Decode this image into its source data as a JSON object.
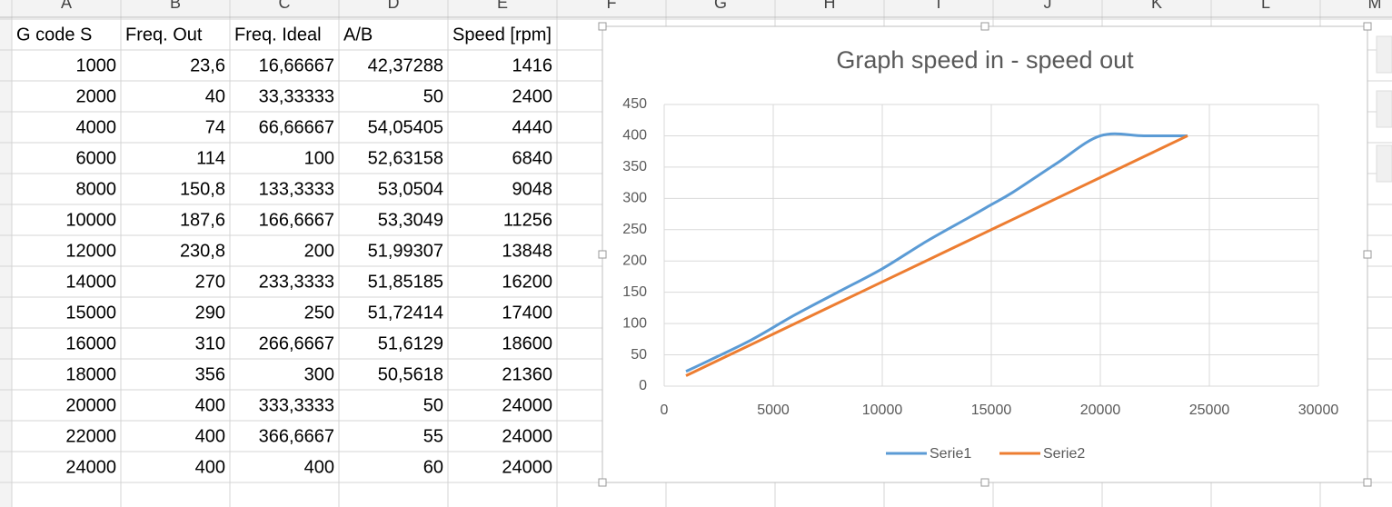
{
  "table": {
    "columns": [
      "A",
      "B",
      "C",
      "D",
      "E",
      "F",
      "G",
      "H",
      "I",
      "J",
      "K",
      "L",
      "M"
    ],
    "header": [
      "G code S",
      "Freq. Out",
      "Freq. Ideal",
      "A/B",
      "Speed [rpm]"
    ],
    "rows": [
      [
        "1000",
        "23,6",
        "16,66667",
        "42,37288",
        "1416"
      ],
      [
        "2000",
        "40",
        "33,33333",
        "50",
        "2400"
      ],
      [
        "4000",
        "74",
        "66,66667",
        "54,05405",
        "4440"
      ],
      [
        "6000",
        "114",
        "100",
        "52,63158",
        "6840"
      ],
      [
        "8000",
        "150,8",
        "133,3333",
        "53,0504",
        "9048"
      ],
      [
        "10000",
        "187,6",
        "166,6667",
        "53,3049",
        "11256"
      ],
      [
        "12000",
        "230,8",
        "200",
        "51,99307",
        "13848"
      ],
      [
        "14000",
        "270",
        "233,3333",
        "51,85185",
        "16200"
      ],
      [
        "15000",
        "290",
        "250",
        "51,72414",
        "17400"
      ],
      [
        "16000",
        "310",
        "266,6667",
        "51,6129",
        "18600"
      ],
      [
        "18000",
        "356",
        "300",
        "50,5618",
        "21360"
      ],
      [
        "20000",
        "400",
        "333,3333",
        "50",
        "24000"
      ],
      [
        "22000",
        "400",
        "366,6667",
        "55",
        "24000"
      ],
      [
        "24000",
        "400",
        "400",
        "60",
        "24000"
      ]
    ]
  },
  "chart_data": {
    "type": "line",
    "title": "Graph speed in - speed out",
    "smooth": true,
    "x": [
      1000,
      2000,
      4000,
      6000,
      8000,
      10000,
      12000,
      14000,
      15000,
      16000,
      18000,
      20000,
      22000,
      24000
    ],
    "series": [
      {
        "name": "Serie1",
        "color": "#5b9bd5",
        "values": [
          23.6,
          40,
          74,
          114,
          150.8,
          187.6,
          230.8,
          270,
          290,
          310,
          356,
          400,
          400,
          400
        ]
      },
      {
        "name": "Serie2",
        "color": "#ed7d31",
        "values": [
          16.66667,
          33.33333,
          66.66667,
          100,
          133.3333,
          166.6667,
          200,
          233.3333,
          250,
          266.6667,
          300,
          333.3333,
          366.6667,
          400
        ]
      }
    ],
    "xlim": [
      0,
      30000
    ],
    "xticks": [
      0,
      5000,
      10000,
      15000,
      20000,
      25000,
      30000
    ],
    "ylim": [
      0,
      450
    ],
    "yticks": [
      0,
      50,
      100,
      150,
      200,
      250,
      300,
      350,
      400,
      450
    ],
    "grid": true,
    "legend": "bottom"
  }
}
